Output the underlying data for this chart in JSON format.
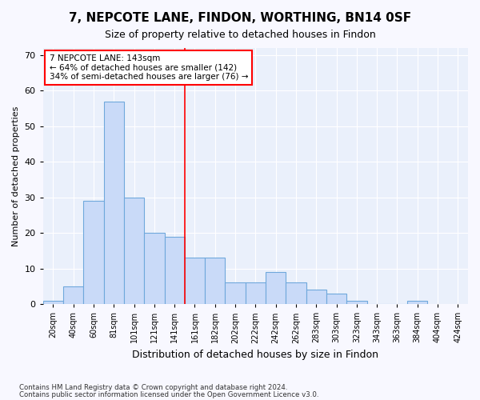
{
  "title": "7, NEPCOTE LANE, FINDON, WORTHING, BN14 0SF",
  "subtitle": "Size of property relative to detached houses in Findon",
  "xlabel": "Distribution of detached houses by size in Findon",
  "ylabel": "Number of detached properties",
  "bar_values": [
    1,
    5,
    29,
    57,
    30,
    20,
    19,
    13,
    13,
    6,
    6,
    9,
    6,
    4,
    3,
    1,
    0,
    0,
    1
  ],
  "bar_labels": [
    "20sqm",
    "40sqm",
    "60sqm",
    "81sqm",
    "101sqm",
    "121sqm",
    "141sqm",
    "161sqm",
    "182sqm",
    "202sqm",
    "222sqm",
    "242sqm",
    "262sqm",
    "283sqm",
    "303sqm",
    "323sqm",
    "343sqm",
    "363sqm",
    "384sqm"
  ],
  "extra_ticks": [
    "404sqm",
    "424sqm"
  ],
  "bar_color": "#c9daf8",
  "bar_edge_color": "#6fa8dc",
  "background_color": "#eaf0fb",
  "fig_background_color": "#f8f8ff",
  "red_line_x": 6.5,
  "annotation_title": "7 NEPCOTE LANE: 143sqm",
  "annotation_line1": "← 64% of detached houses are smaller (142)",
  "annotation_line2": "34% of semi-detached houses are larger (76) →",
  "ylim": [
    0,
    72
  ],
  "yticks": [
    0,
    10,
    20,
    30,
    40,
    50,
    60,
    70
  ],
  "footer1": "Contains HM Land Registry data © Crown copyright and database right 2024.",
  "footer2": "Contains public sector information licensed under the Open Government Licence v3.0."
}
